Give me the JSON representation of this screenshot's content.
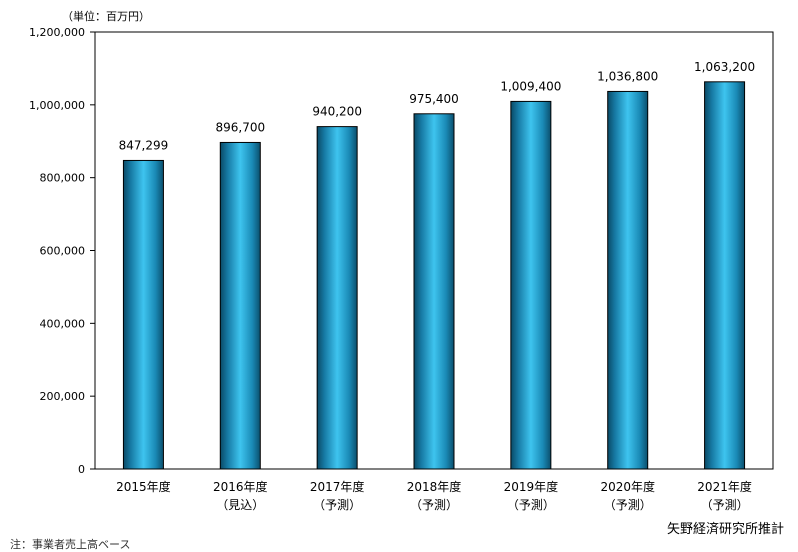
{
  "unit_label": "（単位：百万円）",
  "source": "矢野経済研究所推計",
  "footnote": "注：事業者売上高ベース",
  "chart_data": {
    "type": "bar",
    "title": "",
    "xlabel": "",
    "ylabel": "",
    "categories": [
      "2015年度",
      "2016年度",
      "2017年度",
      "2018年度",
      "2019年度",
      "2020年度",
      "2021年度"
    ],
    "category_sublabels": [
      "",
      "（見込）",
      "（予測）",
      "（予測）",
      "（予測）",
      "（予測）",
      "（予測）"
    ],
    "values": [
      847299,
      896700,
      940200,
      975400,
      1009400,
      1036800,
      1063200
    ],
    "value_labels": [
      "847,299",
      "896,700",
      "940,200",
      "975,400",
      "1,009,400",
      "1,036,800",
      "1,063,200"
    ],
    "ylim": [
      0,
      1200000
    ],
    "yticks": [
      0,
      200000,
      400000,
      600000,
      800000,
      1000000,
      1200000
    ],
    "ytick_labels": [
      "0",
      "200,000",
      "400,000",
      "600,000",
      "800,000",
      "1,000,000",
      "1,200,000"
    ],
    "grid": false,
    "legend": "none",
    "bar_color": "#1fa3cf"
  }
}
